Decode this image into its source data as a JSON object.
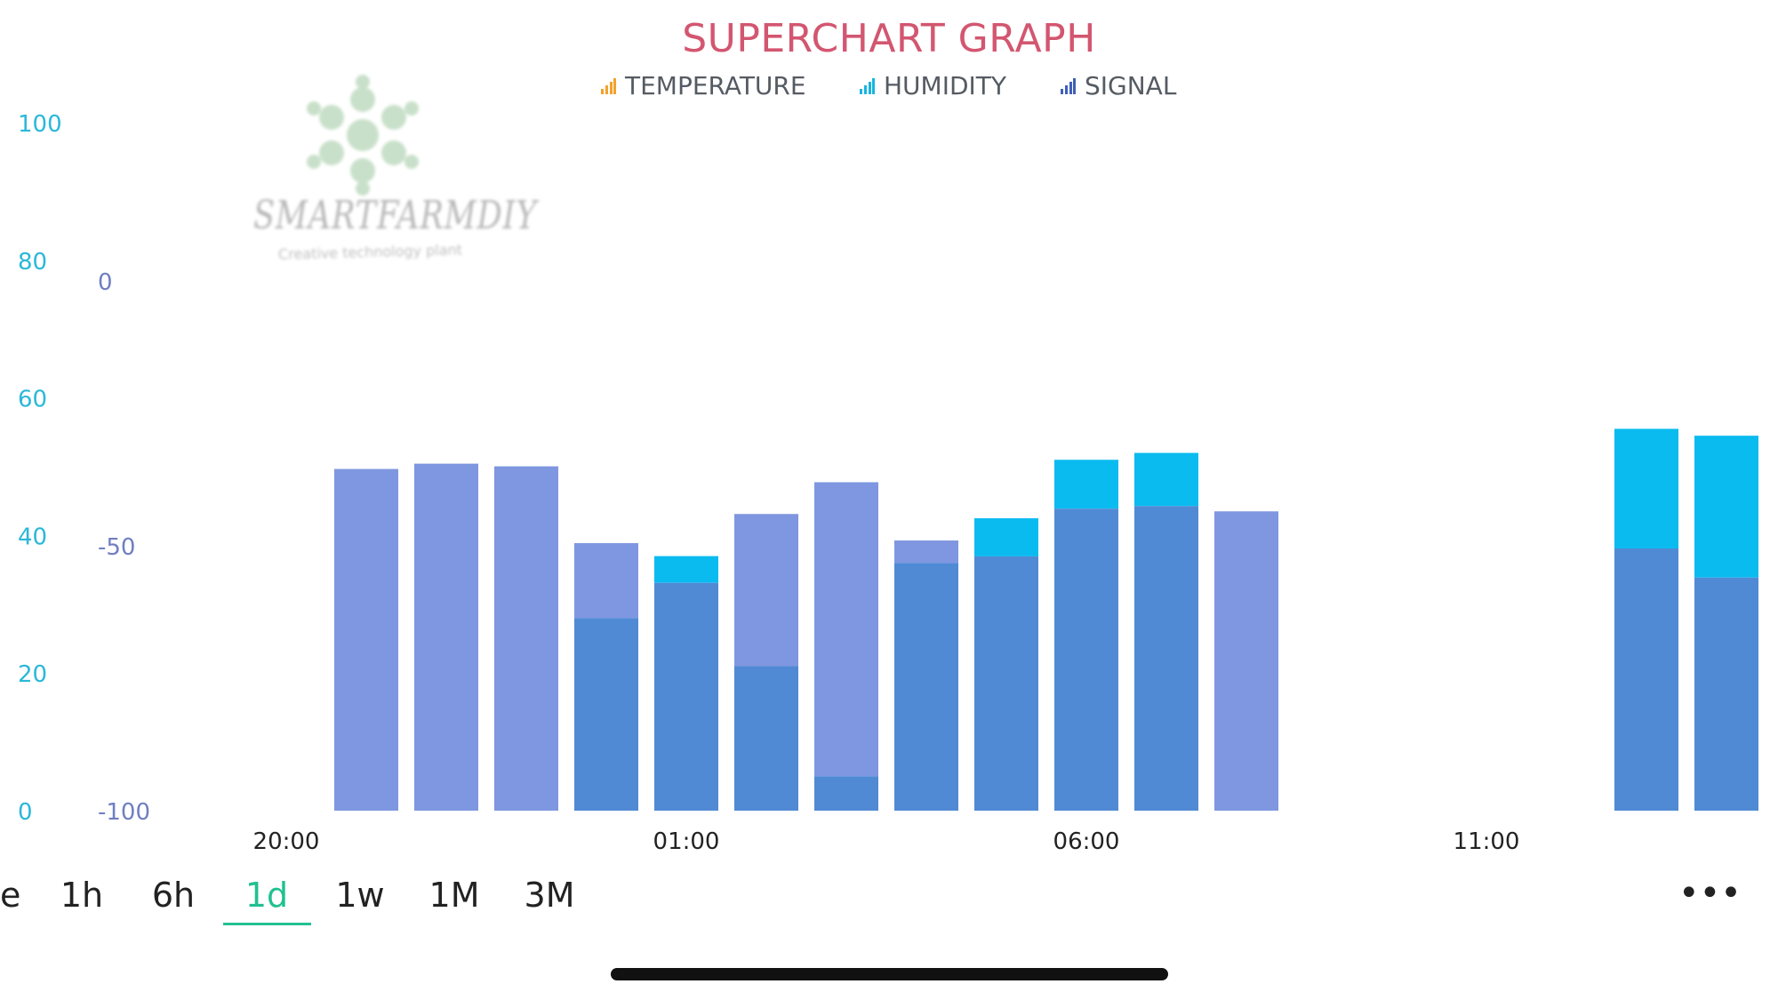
{
  "chart_data": {
    "type": "bar",
    "title": "SUPERCHART GRAPH",
    "legend_placement": "top-center",
    "legend": [
      {
        "label": "TEMPERATURE",
        "color": "#f3a12b"
      },
      {
        "label": "HUMIDITY",
        "color": "#18b5e0"
      },
      {
        "label": "SIGNAL",
        "color": "#3f5fb8"
      }
    ],
    "x_ticks": [
      "20:00",
      "01:00",
      "06:00",
      "11:00"
    ],
    "x_tick_hours": [
      20,
      25,
      30,
      35
    ],
    "y_left": {
      "ticks": [
        "100",
        "80",
        "60",
        "40",
        "20",
        "0"
      ],
      "range": [
        0,
        100
      ],
      "color": "#2bb8d8"
    },
    "y_right": {
      "ticks": [
        "0",
        "-50",
        "-100"
      ],
      "range": [
        -100,
        0
      ],
      "color": "#6f7fc0"
    },
    "grid": false,
    "bars": [
      {
        "hour": 21,
        "humidity": null,
        "signal": -35.5,
        "temperature": null
      },
      {
        "hour": 22,
        "humidity": null,
        "signal": -34.5,
        "temperature": null
      },
      {
        "hour": 23,
        "humidity": null,
        "signal": -35,
        "temperature": null
      },
      {
        "hour": 24,
        "humidity": 28,
        "signal": -49.5,
        "temperature": null
      },
      {
        "hour": 25,
        "humidity": 37,
        "signal": -57,
        "temperature": null
      },
      {
        "hour": 26,
        "humidity": 21,
        "signal": -44,
        "temperature": null
      },
      {
        "hour": 27,
        "humidity": 5,
        "signal": -38,
        "temperature": null
      },
      {
        "hour": 28,
        "humidity": 36,
        "signal": -49,
        "temperature": null
      },
      {
        "hour": 29,
        "humidity": 42.5,
        "signal": -52,
        "temperature": null
      },
      {
        "hour": 30,
        "humidity": 51,
        "signal": -43,
        "temperature": null
      },
      {
        "hour": 31,
        "humidity": 52,
        "signal": -42.5,
        "temperature": null
      },
      {
        "hour": 32,
        "humidity": null,
        "signal": -43.5,
        "temperature": null
      },
      {
        "hour": 37,
        "humidity": 55.5,
        "signal": -50.5,
        "temperature": null
      },
      {
        "hour": 38,
        "humidity": 54.5,
        "signal": -56,
        "temperature": null
      }
    ]
  },
  "watermark": {
    "brand": "SMARTFARMDIY",
    "tagline": "Creative technology plant"
  },
  "range_selector": {
    "options": [
      "e",
      "1h",
      "6h",
      "1d",
      "1w",
      "1M",
      "3M"
    ],
    "selected": "1d",
    "more_label": "•••"
  },
  "colors": {
    "signal_bar": "#7f97e0",
    "humidity_bar": "#0abbf0",
    "overlap": "#508ad5",
    "title": "#d35670",
    "active": "#22c090"
  }
}
